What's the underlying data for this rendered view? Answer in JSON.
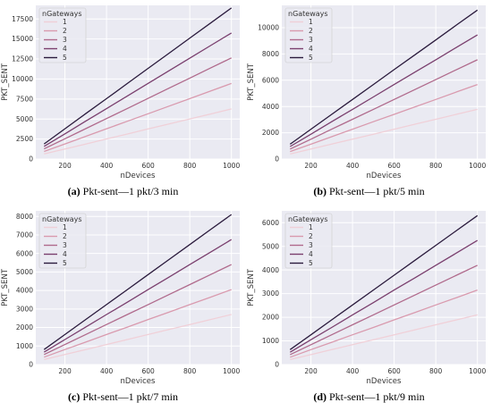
{
  "chart_data": [
    {
      "type": "line",
      "caption_label": "(a)",
      "caption_text": "Pkt-sent—1 pkt/3 min",
      "xlabel": "nDevices",
      "ylabel": "PKT_SENT",
      "xlim": [
        60,
        1040
      ],
      "ylim": [
        0,
        19200
      ],
      "xticks": [
        200,
        400,
        600,
        800,
        1000
      ],
      "yticks": [
        0,
        2500,
        5000,
        7500,
        10000,
        12500,
        15000,
        17500
      ],
      "legend_title": "nGateways",
      "legend_position": "top-left",
      "grid": true,
      "x": [
        100,
        200,
        300,
        400,
        500,
        600,
        700,
        800,
        900,
        1000
      ],
      "series": [
        {
          "name": "1",
          "color": "#f0d0d8",
          "values": [
            640,
            1260,
            1880,
            2510,
            3130,
            3760,
            4380,
            5010,
            5630,
            6260
          ]
        },
        {
          "name": "2",
          "color": "#d99aae",
          "values": [
            950,
            1890,
            2830,
            3780,
            4720,
            5660,
            6610,
            7550,
            8490,
            9440
          ]
        },
        {
          "name": "3",
          "color": "#b06a8c",
          "values": [
            1270,
            2530,
            3790,
            5060,
            6320,
            7580,
            8850,
            10110,
            11370,
            12640
          ]
        },
        {
          "name": "4",
          "color": "#7a3f6e",
          "values": [
            1580,
            3150,
            4730,
            6300,
            7880,
            9450,
            11030,
            12600,
            14180,
            15750
          ]
        },
        {
          "name": "5",
          "color": "#2a1a3c",
          "values": [
            1890,
            3780,
            5670,
            7550,
            9440,
            11330,
            13220,
            15110,
            16990,
            18880
          ]
        }
      ]
    },
    {
      "type": "line",
      "caption_label": "(b)",
      "caption_text": "Pkt-sent—1 pkt/5 min",
      "xlabel": "nDevices",
      "ylabel": "PKT_SENT",
      "xlim": [
        60,
        1040
      ],
      "ylim": [
        0,
        11700
      ],
      "xticks": [
        200,
        400,
        600,
        800,
        1000
      ],
      "yticks": [
        0,
        2000,
        4000,
        6000,
        8000,
        10000
      ],
      "legend_title": "nGateways",
      "legend_position": "top-left",
      "grid": true,
      "x": [
        100,
        200,
        300,
        400,
        500,
        600,
        700,
        800,
        900,
        1000
      ],
      "series": [
        {
          "name": "1",
          "color": "#f0d0d8",
          "values": [
            380,
            760,
            1140,
            1510,
            1890,
            2270,
            2650,
            3030,
            3410,
            3780
          ]
        },
        {
          "name": "2",
          "color": "#d99aae",
          "values": [
            570,
            1130,
            1700,
            2270,
            2840,
            3400,
            3970,
            4540,
            5110,
            5670
          ]
        },
        {
          "name": "3",
          "color": "#b06a8c",
          "values": [
            760,
            1510,
            2270,
            3030,
            3780,
            4540,
            5290,
            6050,
            6810,
            7560
          ]
        },
        {
          "name": "4",
          "color": "#7a3f6e",
          "values": [
            950,
            1890,
            2840,
            3780,
            4730,
            5670,
            6620,
            7560,
            8510,
            9450
          ]
        },
        {
          "name": "5",
          "color": "#2a1a3c",
          "values": [
            1130,
            2270,
            3400,
            4540,
            5670,
            6810,
            7940,
            9070,
            10210,
            11340
          ]
        }
      ]
    },
    {
      "type": "line",
      "caption_label": "(c)",
      "caption_text": "Pkt-sent—1 pkt/7 min",
      "xlabel": "nDevices",
      "ylabel": "PKT_SENT",
      "xlim": [
        60,
        1040
      ],
      "ylim": [
        0,
        8300
      ],
      "xticks": [
        200,
        400,
        600,
        800,
        1000
      ],
      "yticks": [
        0,
        1000,
        2000,
        3000,
        4000,
        5000,
        6000,
        7000,
        8000
      ],
      "legend_title": "nGateways",
      "legend_position": "top-left",
      "grid": true,
      "x": [
        100,
        200,
        300,
        400,
        500,
        600,
        700,
        800,
        900,
        1000
      ],
      "series": [
        {
          "name": "1",
          "color": "#f0d0d8",
          "values": [
            270,
            540,
            810,
            1080,
            1350,
            1620,
            1890,
            2160,
            2430,
            2700
          ]
        },
        {
          "name": "2",
          "color": "#d99aae",
          "values": [
            400,
            810,
            1210,
            1620,
            2020,
            2430,
            2830,
            3240,
            3640,
            4050
          ]
        },
        {
          "name": "3",
          "color": "#b06a8c",
          "values": [
            540,
            1080,
            1620,
            2160,
            2700,
            3240,
            3780,
            4320,
            4860,
            5400
          ]
        },
        {
          "name": "4",
          "color": "#7a3f6e",
          "values": [
            670,
            1350,
            2020,
            2700,
            3370,
            4050,
            4720,
            5400,
            6070,
            6750
          ]
        },
        {
          "name": "5",
          "color": "#2a1a3c",
          "values": [
            810,
            1620,
            2430,
            3240,
            4050,
            4860,
            5670,
            6480,
            7290,
            8100
          ]
        }
      ]
    },
    {
      "type": "line",
      "caption_label": "(d)",
      "caption_text": "Pkt-sent—1 pkt/9 min",
      "xlabel": "nDevices",
      "ylabel": "PKT_SENT",
      "xlim": [
        60,
        1040
      ],
      "ylim": [
        0,
        6500
      ],
      "xticks": [
        200,
        400,
        600,
        800,
        1000
      ],
      "yticks": [
        0,
        1000,
        2000,
        3000,
        4000,
        5000,
        6000
      ],
      "legend_title": "nGateways",
      "legend_position": "top-left",
      "grid": true,
      "x": [
        100,
        200,
        300,
        400,
        500,
        600,
        700,
        800,
        900,
        1000
      ],
      "series": [
        {
          "name": "1",
          "color": "#f0d0d8",
          "values": [
            210,
            420,
            630,
            840,
            1050,
            1260,
            1470,
            1680,
            1890,
            2100
          ]
        },
        {
          "name": "2",
          "color": "#d99aae",
          "values": [
            310,
            630,
            940,
            1260,
            1570,
            1890,
            2200,
            2520,
            2830,
            3150
          ]
        },
        {
          "name": "3",
          "color": "#b06a8c",
          "values": [
            420,
            840,
            1260,
            1680,
            2100,
            2520,
            2940,
            3360,
            3780,
            4200
          ]
        },
        {
          "name": "4",
          "color": "#7a3f6e",
          "values": [
            520,
            1050,
            1570,
            2100,
            2620,
            3150,
            3670,
            4200,
            4720,
            5250
          ]
        },
        {
          "name": "5",
          "color": "#2a1a3c",
          "values": [
            630,
            1260,
            1890,
            2520,
            3150,
            3780,
            4410,
            5040,
            5670,
            6300
          ]
        }
      ]
    }
  ]
}
